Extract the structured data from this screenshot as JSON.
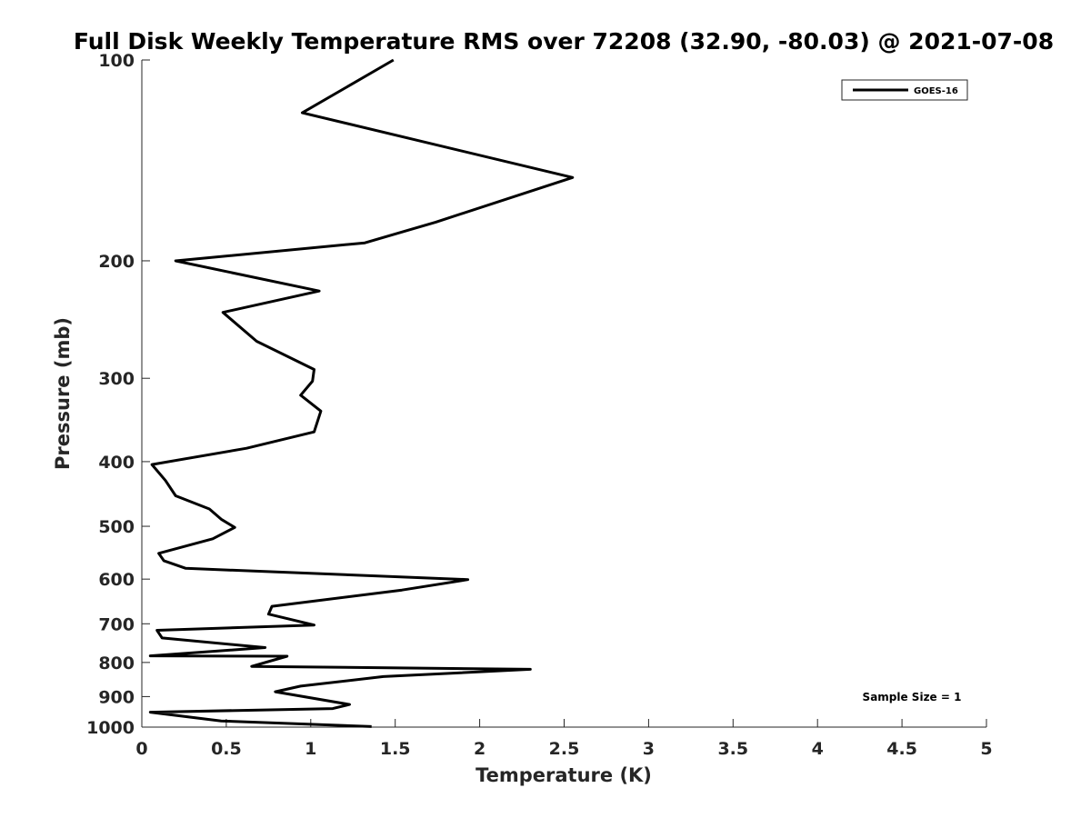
{
  "chart_data": {
    "type": "line",
    "title": "Full Disk Weekly Temperature RMS over 72208 (32.90, -80.03) @ 2021-07-08",
    "xlabel": "Temperature (K)",
    "ylabel": "Pressure (mb)",
    "xlim": [
      0,
      5
    ],
    "ylim": [
      100,
      1000
    ],
    "y_scale": "log",
    "y_reversed": true,
    "x_ticks": [
      0,
      0.5,
      1,
      1.5,
      2,
      2.5,
      3,
      3.5,
      4,
      4.5,
      5
    ],
    "x_tick_labels": [
      "0",
      "0.5",
      "1",
      "1.5",
      "2",
      "2.5",
      "3",
      "3.5",
      "4",
      "4.5",
      "5"
    ],
    "y_ticks": [
      100,
      200,
      300,
      400,
      500,
      600,
      700,
      800,
      900,
      1000
    ],
    "y_tick_labels": [
      "100",
      "200",
      "300",
      "400",
      "500",
      "600",
      "700",
      "800",
      "900",
      "1000"
    ],
    "grid": false,
    "legend_position": "top-right",
    "annotation": "Sample Size = 1",
    "series": [
      {
        "name": "GOES-16",
        "color": "#000000",
        "x": [
          1.49,
          0.95,
          2.55,
          1.74,
          1.32,
          0.2,
          1.05,
          0.48,
          0.68,
          1.02,
          1.01,
          0.94,
          1.06,
          1.02,
          0.62,
          0.06,
          0.14,
          0.2,
          0.4,
          0.47,
          0.55,
          0.42,
          0.1,
          0.13,
          0.26,
          1.93,
          1.54,
          0.77,
          0.75,
          1.02,
          0.09,
          0.12,
          0.73,
          0.05,
          0.86,
          0.65,
          2.3,
          1.43,
          0.94,
          0.79,
          1.23,
          1.13,
          0.05,
          0.47,
          1.36
        ],
        "y": [
          100,
          120,
          150,
          175,
          188,
          200,
          222,
          239,
          264,
          291,
          303,
          318,
          336,
          361,
          382,
          404,
          427,
          450,
          471,
          488,
          502,
          522,
          549,
          563,
          578,
          601,
          623,
          659,
          677,
          703,
          716,
          735,
          760,
          782,
          783,
          811,
          819,
          840,
          868,
          885,
          925,
          938,
          950,
          979,
          998
        ]
      }
    ]
  }
}
